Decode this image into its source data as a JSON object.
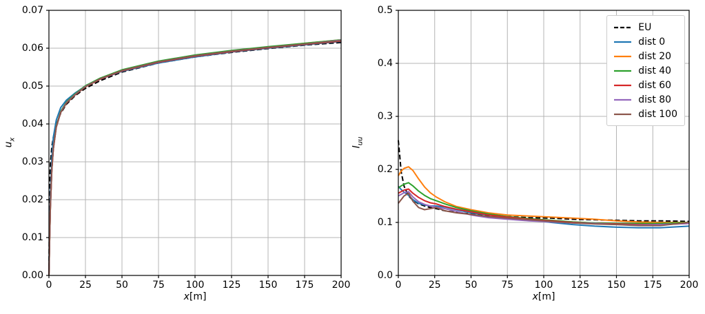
{
  "figure": {
    "background": "#ffffff",
    "grid_color": "#b4b4b4",
    "spine_color": "#000000",
    "legend_border_color": "#cccccc"
  },
  "chart_data": [
    {
      "type": "line",
      "title": "",
      "xlabel_var": "x",
      "xlabel_unit": "[m]",
      "ylabel_var": "u",
      "ylabel_sub": "x",
      "xlim": [
        0,
        200
      ],
      "ylim": [
        0.0,
        0.07
      ],
      "xticks": [
        "0",
        "25",
        "50",
        "75",
        "100",
        "125",
        "150",
        "175",
        "200"
      ],
      "yticks": [
        "0.00",
        "0.01",
        "0.02",
        "0.03",
        "0.04",
        "0.05",
        "0.06",
        "0.07"
      ],
      "grid": true,
      "legend": false,
      "x": [
        0,
        0.5,
        1,
        2,
        3,
        5,
        8,
        12,
        18,
        25,
        35,
        50,
        75,
        100,
        125,
        150,
        175,
        200
      ],
      "series": [
        {
          "name": "EU",
          "color": "#000000",
          "dashed": true,
          "y": [
            0.0,
            0.024,
            0.0295,
            0.034,
            0.0365,
            0.0398,
            0.0428,
            0.0452,
            0.0475,
            0.0494,
            0.0514,
            0.0537,
            0.0561,
            0.0577,
            0.0589,
            0.0599,
            0.0608,
            0.0615
          ]
        },
        {
          "name": "dist 0",
          "color": "#1f77b4",
          "dashed": false,
          "y": [
            0.0,
            0.013,
            0.021,
            0.031,
            0.0365,
            0.041,
            0.0443,
            0.0463,
            0.0482,
            0.05,
            0.0518,
            0.0539,
            0.0561,
            0.0577,
            0.059,
            0.06,
            0.0609,
            0.0618
          ]
        },
        {
          "name": "dist 20",
          "color": "#ff7f0e",
          "dashed": false,
          "y": [
            0.0,
            0.01,
            0.018,
            0.028,
            0.0336,
            0.0393,
            0.0432,
            0.0457,
            0.0479,
            0.05,
            0.052,
            0.0542,
            0.0565,
            0.0581,
            0.0593,
            0.0603,
            0.0613,
            0.0622
          ]
        },
        {
          "name": "dist 40",
          "color": "#2ca02c",
          "dashed": false,
          "y": [
            0.0,
            0.01,
            0.018,
            0.0281,
            0.0337,
            0.0394,
            0.0433,
            0.0458,
            0.048,
            0.0501,
            0.0521,
            0.0543,
            0.0566,
            0.0582,
            0.0594,
            0.0604,
            0.0613,
            0.0622
          ]
        },
        {
          "name": "dist 60",
          "color": "#d62728",
          "dashed": false,
          "y": [
            0.0,
            0.01,
            0.018,
            0.0279,
            0.0334,
            0.0391,
            0.043,
            0.0455,
            0.0477,
            0.0498,
            0.0518,
            0.054,
            0.0563,
            0.0579,
            0.0591,
            0.0601,
            0.061,
            0.0619
          ]
        },
        {
          "name": "dist 80",
          "color": "#9467bd",
          "dashed": false,
          "y": [
            0.0,
            0.01,
            0.018,
            0.028,
            0.0335,
            0.0392,
            0.0431,
            0.0456,
            0.0478,
            0.0499,
            0.0519,
            0.0541,
            0.0564,
            0.058,
            0.0592,
            0.0602,
            0.0611,
            0.0621
          ]
        },
        {
          "name": "dist 100",
          "color": "#8c564b",
          "dashed": false,
          "y": [
            0.0,
            0.01,
            0.018,
            0.028,
            0.0334,
            0.0391,
            0.043,
            0.0455,
            0.0477,
            0.0498,
            0.0519,
            0.0541,
            0.0564,
            0.058,
            0.0592,
            0.0602,
            0.0611,
            0.062
          ]
        }
      ]
    },
    {
      "type": "line",
      "title": "",
      "xlabel_var": "x",
      "xlabel_unit": "[m]",
      "ylabel_var": "I",
      "ylabel_sub": "uu",
      "xlim": [
        0,
        200
      ],
      "ylim": [
        0.0,
        0.5
      ],
      "xticks": [
        "0",
        "25",
        "50",
        "75",
        "100",
        "125",
        "150",
        "175",
        "200"
      ],
      "yticks": [
        "0.0",
        "0.1",
        "0.2",
        "0.3",
        "0.4",
        "0.5"
      ],
      "grid": true,
      "legend": true,
      "legend_position": "upper right",
      "x": [
        0,
        2,
        4,
        7,
        10,
        14,
        18,
        22,
        26,
        32,
        40,
        50,
        62,
        75,
        90,
        105,
        120,
        135,
        150,
        165,
        180,
        200
      ],
      "series": [
        {
          "name": "EU",
          "color": "#000000",
          "dashed": true,
          "y": [
            0.255,
            0.195,
            0.168,
            0.15,
            0.142,
            0.135,
            0.131,
            0.128,
            0.126,
            0.122,
            0.119,
            0.116,
            0.113,
            0.111,
            0.109,
            0.108,
            0.106,
            0.105,
            0.104,
            0.103,
            0.103,
            0.102
          ]
        },
        {
          "name": "dist 0",
          "color": "#1f77b4",
          "dashed": false,
          "y": [
            0.168,
            0.162,
            0.157,
            0.151,
            0.143,
            0.136,
            0.133,
            0.131,
            0.131,
            0.129,
            0.124,
            0.118,
            0.114,
            0.11,
            0.105,
            0.1,
            0.096,
            0.093,
            0.091,
            0.09,
            0.09,
            0.093
          ]
        },
        {
          "name": "dist 20",
          "color": "#ff7f0e",
          "dashed": false,
          "y": [
            0.188,
            0.197,
            0.202,
            0.205,
            0.198,
            0.182,
            0.167,
            0.156,
            0.148,
            0.139,
            0.13,
            0.124,
            0.118,
            0.114,
            0.112,
            0.11,
            0.108,
            0.106,
            0.103,
            0.101,
            0.1,
            0.1
          ]
        },
        {
          "name": "dist 40",
          "color": "#2ca02c",
          "dashed": false,
          "y": [
            0.165,
            0.169,
            0.172,
            0.175,
            0.169,
            0.159,
            0.151,
            0.145,
            0.141,
            0.135,
            0.128,
            0.122,
            0.116,
            0.111,
            0.107,
            0.104,
            0.101,
            0.099,
            0.098,
            0.098,
            0.098,
            0.1
          ]
        },
        {
          "name": "dist 60",
          "color": "#d62728",
          "dashed": false,
          "y": [
            0.155,
            0.158,
            0.161,
            0.163,
            0.155,
            0.147,
            0.141,
            0.137,
            0.135,
            0.13,
            0.125,
            0.12,
            0.114,
            0.11,
            0.106,
            0.103,
            0.1,
            0.098,
            0.097,
            0.096,
            0.096,
            0.098
          ]
        },
        {
          "name": "dist 80",
          "color": "#9467bd",
          "dashed": false,
          "y": [
            0.15,
            0.153,
            0.156,
            0.158,
            0.148,
            0.139,
            0.134,
            0.131,
            0.129,
            0.126,
            0.121,
            0.114,
            0.109,
            0.106,
            0.103,
            0.101,
            0.099,
            0.098,
            0.096,
            0.095,
            0.096,
            0.098
          ]
        },
        {
          "name": "dist 100",
          "color": "#8c564b",
          "dashed": false,
          "y": [
            0.136,
            0.143,
            0.15,
            0.155,
            0.14,
            0.128,
            0.124,
            0.126,
            0.128,
            0.122,
            0.118,
            0.115,
            0.111,
            0.108,
            0.105,
            0.102,
            0.099,
            0.097,
            0.096,
            0.094,
            0.094,
            0.1
          ]
        }
      ]
    }
  ]
}
